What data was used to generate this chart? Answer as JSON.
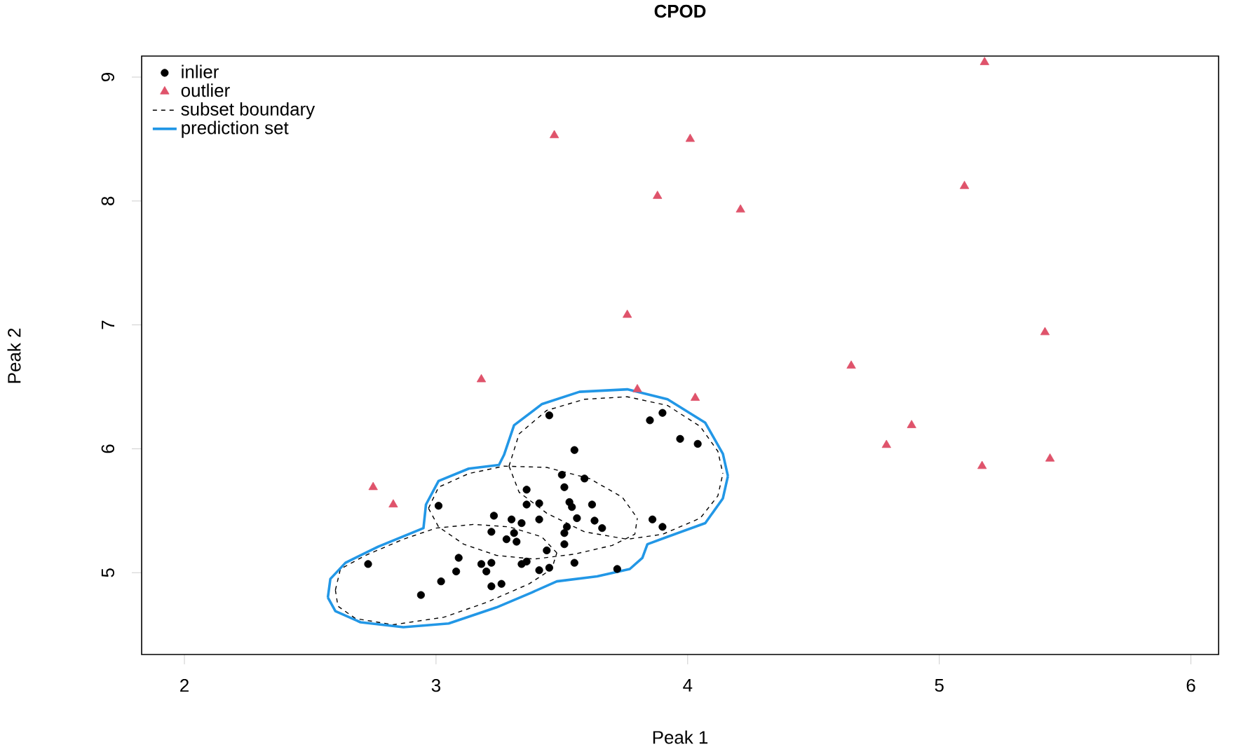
{
  "chart_data": {
    "type": "scatter",
    "title": "CPOD",
    "xlabel": "Peak 1",
    "ylabel": "Peak 2",
    "xlim": [
      1.83,
      6.11
    ],
    "ylim": [
      4.34,
      9.17
    ],
    "xticks": [
      2,
      3,
      4,
      5,
      6
    ],
    "yticks": [
      5,
      6,
      7,
      8,
      9
    ],
    "legend": "top left",
    "grid": false,
    "series": [
      {
        "name": "inlier",
        "marker": "circle",
        "color": "#000000",
        "x": [
          3.45,
          3.85,
          3.9,
          3.97,
          4.04,
          3.55,
          3.5,
          3.59,
          3.36,
          3.51,
          3.01,
          3.36,
          3.41,
          3.53,
          3.54,
          3.62,
          3.23,
          3.3,
          3.34,
          3.41,
          3.56,
          3.63,
          3.66,
          3.52,
          3.51,
          3.86,
          3.9,
          3.22,
          3.31,
          3.28,
          3.32,
          3.51,
          3.44,
          3.09,
          3.18,
          3.22,
          3.34,
          3.36,
          3.55,
          3.08,
          3.2,
          3.41,
          3.45,
          3.72,
          3.02,
          3.22,
          3.26,
          2.94,
          2.73
        ],
        "values": [
          6.27,
          6.23,
          6.29,
          6.08,
          6.04,
          5.99,
          5.79,
          5.76,
          5.67,
          5.69,
          5.54,
          5.55,
          5.56,
          5.57,
          5.53,
          5.55,
          5.46,
          5.43,
          5.4,
          5.43,
          5.44,
          5.42,
          5.36,
          5.37,
          5.32,
          5.43,
          5.37,
          5.33,
          5.32,
          5.27,
          5.25,
          5.23,
          5.18,
          5.12,
          5.07,
          5.08,
          5.07,
          5.09,
          5.08,
          5.01,
          5.01,
          5.02,
          5.04,
          5.03,
          4.93,
          4.89,
          4.91,
          4.82,
          5.07
        ]
      },
      {
        "name": "outlier",
        "marker": "triangle",
        "color": "#df536b",
        "x": [
          5.18,
          3.47,
          4.01,
          3.88,
          4.21,
          5.1,
          3.76,
          5.42,
          3.18,
          4.65,
          3.8,
          4.03,
          4.89,
          4.79,
          5.17,
          5.44,
          2.75,
          2.83
        ],
        "values": [
          9.12,
          8.53,
          8.5,
          8.04,
          7.93,
          8.12,
          7.08,
          6.94,
          6.56,
          6.67,
          6.48,
          6.41,
          6.19,
          6.03,
          5.86,
          5.92,
          5.69,
          5.55
        ]
      },
      {
        "name": "subset boundary",
        "type": "line",
        "line_style": "dashed",
        "color": "#000000",
        "x": [
          2.6,
          2.62,
          2.72,
          2.87,
          3.0,
          3.15,
          3.29,
          3.42,
          3.48,
          null,
          2.6,
          2.61,
          2.68,
          2.83,
          3.03,
          3.2,
          3.37,
          3.46,
          3.48,
          null,
          2.97,
          3.01,
          3.13,
          3.27,
          3.44,
          3.61,
          3.74,
          3.8,
          null,
          2.97,
          3.01,
          3.11,
          3.24,
          3.39,
          3.55,
          3.7,
          3.79,
          3.8,
          null,
          3.29,
          3.33,
          3.44,
          3.59,
          3.76,
          3.92,
          4.05,
          4.12,
          4.14,
          null,
          3.29,
          3.33,
          3.44,
          3.59,
          3.76,
          3.9,
          4.05,
          4.12,
          4.14
        ],
        "values": [
          4.86,
          5.03,
          5.14,
          5.27,
          5.36,
          5.39,
          5.37,
          5.29,
          5.16,
          null,
          4.86,
          4.73,
          4.63,
          4.58,
          4.64,
          4.76,
          4.91,
          5.03,
          5.16,
          null,
          5.52,
          5.69,
          5.8,
          5.86,
          5.85,
          5.76,
          5.61,
          5.44,
          null,
          5.52,
          5.37,
          5.23,
          5.14,
          5.11,
          5.15,
          5.22,
          5.31,
          5.44,
          null,
          5.86,
          6.12,
          6.31,
          6.4,
          6.42,
          6.35,
          6.18,
          5.98,
          5.8,
          null,
          5.86,
          5.65,
          5.48,
          5.33,
          5.27,
          5.31,
          5.44,
          5.62,
          5.8
        ]
      },
      {
        "name": "prediction set",
        "type": "line",
        "line_style": "solid",
        "color": "#2297e6",
        "x": [
          2.57,
          2.58,
          2.64,
          2.77,
          2.95,
          2.96,
          3.01,
          3.13,
          3.25,
          3.27,
          3.31,
          3.42,
          3.57,
          3.76,
          3.92,
          4.07,
          4.14,
          4.16,
          null,
          2.57,
          2.6,
          2.7,
          2.87,
          3.05,
          3.24,
          3.38,
          3.48,
          3.64,
          3.77,
          3.82,
          3.84,
          3.92,
          4.07,
          4.14,
          4.16
        ],
        "values": [
          4.8,
          4.95,
          5.08,
          5.21,
          5.36,
          5.55,
          5.74,
          5.84,
          5.87,
          5.95,
          6.19,
          6.36,
          6.46,
          6.48,
          6.4,
          6.21,
          5.96,
          5.78,
          null,
          4.8,
          4.69,
          4.6,
          4.56,
          4.59,
          4.72,
          4.84,
          4.93,
          4.97,
          5.03,
          5.12,
          5.23,
          5.29,
          5.4,
          5.6,
          5.78
        ]
      }
    ]
  }
}
